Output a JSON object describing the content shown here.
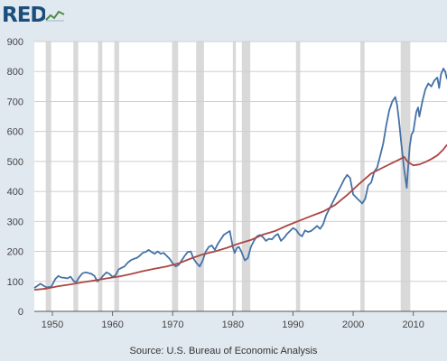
{
  "header": {
    "logo_text": "RED",
    "logo_icon": "chart-line-icon"
  },
  "source": "Source: U.S. Bureau of Economic Analysis",
  "colors": {
    "background": "#e1e9f0",
    "plot_background": "#ffffff",
    "recession": "#d9d9d9",
    "series_blue": "#4572a7",
    "series_red": "#aa4643",
    "gridline": "#cfcfcf"
  },
  "chart_data": {
    "type": "line",
    "title": "",
    "xlabel": "",
    "ylabel": "",
    "xlim": [
      1947,
      2015.6
    ],
    "ylim": [
      0,
      900
    ],
    "yticks": [
      0,
      100,
      200,
      300,
      400,
      500,
      600,
      700,
      800,
      900
    ],
    "xticks": [
      1950,
      1960,
      1970,
      1980,
      1990,
      2000,
      2010
    ],
    "grid": "horizontal",
    "legend": "none",
    "recessions": [
      [
        1948.9,
        1949.8
      ],
      [
        1953.5,
        1954.3
      ],
      [
        1957.6,
        1958.3
      ],
      [
        1960.3,
        1961.1
      ],
      [
        1969.9,
        1970.9
      ],
      [
        1973.9,
        1975.2
      ],
      [
        1980.0,
        1980.5
      ],
      [
        1981.5,
        1982.9
      ],
      [
        1990.5,
        1991.2
      ],
      [
        2001.2,
        2001.9
      ],
      [
        2007.9,
        2009.5
      ]
    ],
    "series": [
      {
        "color": "#4572a7",
        "x": [
          1947,
          1948,
          1949,
          1949.8,
          1950.5,
          1951,
          1951.5,
          1952,
          1952.5,
          1953,
          1953.6,
          1954,
          1954.5,
          1955,
          1955.5,
          1956,
          1956.5,
          1957,
          1957.5,
          1958,
          1958.5,
          1959,
          1959.5,
          1960,
          1960.5,
          1961,
          1961.5,
          1962,
          1962.5,
          1963,
          1963.5,
          1964,
          1964.5,
          1965,
          1965.5,
          1966,
          1966.5,
          1967,
          1967.5,
          1968,
          1968.5,
          1969,
          1969.5,
          1970,
          1970.5,
          1971,
          1971.5,
          1972,
          1972.5,
          1973,
          1973.5,
          1974,
          1974.5,
          1975,
          1975.5,
          1976,
          1976.5,
          1977,
          1977.5,
          1978,
          1978.5,
          1979,
          1979.5,
          1980,
          1980.3,
          1980.7,
          1981,
          1981.4,
          1981.8,
          1982,
          1982.5,
          1983,
          1983.5,
          1984,
          1984.5,
          1985,
          1985.5,
          1986,
          1986.5,
          1987,
          1987.5,
          1988,
          1988.5,
          1989,
          1989.5,
          1990,
          1990.5,
          1991,
          1991.5,
          1992,
          1992.5,
          1993,
          1993.5,
          1994,
          1994.5,
          1995,
          1995.5,
          1996,
          1996.5,
          1997,
          1997.5,
          1998,
          1998.5,
          1999,
          1999.5,
          2000,
          2000.5,
          2001,
          2001.5,
          2002,
          2002.5,
          2003,
          2003.5,
          2004,
          2004.5,
          2005,
          2005.5,
          2006,
          2006.5,
          2007,
          2007.3,
          2007.6,
          2008,
          2008.5,
          2008.9,
          2009.1,
          2009.4,
          2009.7,
          2010,
          2010.5,
          2010.8,
          2011,
          2011.5,
          2012,
          2012.5,
          2013,
          2013.5,
          2014,
          2014.3,
          2014.6,
          2015,
          2015.3,
          2015.6
        ],
        "y": [
          78,
          92,
          80,
          82,
          108,
          118,
          113,
          112,
          110,
          116,
          100,
          98,
          115,
          127,
          130,
          128,
          125,
          118,
          100,
          108,
          120,
          130,
          125,
          115,
          120,
          140,
          145,
          150,
          162,
          170,
          175,
          178,
          185,
          195,
          198,
          205,
          198,
          192,
          200,
          192,
          195,
          185,
          175,
          160,
          150,
          155,
          170,
          185,
          198,
          200,
          175,
          160,
          150,
          170,
          200,
          215,
          220,
          205,
          225,
          240,
          255,
          262,
          268,
          215,
          195,
          212,
          215,
          200,
          180,
          170,
          178,
          215,
          235,
          250,
          255,
          248,
          235,
          242,
          240,
          252,
          258,
          235,
          245,
          258,
          268,
          278,
          272,
          258,
          250,
          270,
          265,
          268,
          276,
          285,
          275,
          290,
          320,
          340,
          360,
          380,
          400,
          420,
          440,
          455,
          445,
          390,
          380,
          370,
          360,
          375,
          420,
          430,
          465,
          480,
          520,
          560,
          620,
          670,
          700,
          715,
          690,
          640,
          560,
          470,
          412,
          470,
          550,
          590,
          600,
          665,
          680,
          650,
          700,
          740,
          760,
          750,
          770,
          780,
          745,
          790,
          810,
          800,
          775
        ]
      },
      {
        "color": "#aa4643",
        "x": [
          1947,
          1949,
          1951,
          1953,
          1955,
          1957,
          1959,
          1961,
          1963,
          1965,
          1967,
          1969,
          1971,
          1973,
          1975,
          1977,
          1979,
          1981,
          1983,
          1985,
          1987,
          1989,
          1991,
          1993,
          1995,
          1997,
          1999,
          2001,
          2003,
          2005,
          2007,
          2008.5,
          2009,
          2010,
          2011,
          2012,
          2013,
          2014,
          2015,
          2015.6
        ],
        "y": [
          72,
          76,
          84,
          90,
          97,
          103,
          110,
          116,
          124,
          134,
          142,
          150,
          160,
          176,
          190,
          200,
          212,
          226,
          238,
          256,
          268,
          286,
          302,
          318,
          333,
          355,
          388,
          425,
          460,
          480,
          500,
          515,
          500,
          487,
          490,
          498,
          508,
          520,
          540,
          556
        ]
      }
    ]
  }
}
